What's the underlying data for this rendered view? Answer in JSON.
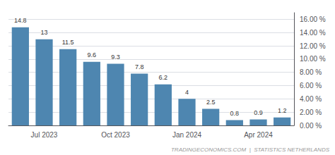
{
  "chart_data": {
    "type": "bar",
    "categories": [
      null,
      "Jul 2023",
      null,
      null,
      "Oct 2023",
      null,
      null,
      "Jan 2024",
      null,
      null,
      "Apr 2024",
      null
    ],
    "values": [
      14.8,
      13.0,
      11.5,
      9.6,
      9.3,
      7.8,
      6.2,
      4.0,
      2.5,
      0.8,
      0.9,
      1.2
    ],
    "color": "#4e86b0",
    "ylim": [
      0,
      17.0
    ],
    "yticks": [
      {
        "value": 0,
        "label": "0.00 %"
      },
      {
        "value": 2,
        "label": "2.00 %"
      },
      {
        "value": 4,
        "label": "4.00 %"
      },
      {
        "value": 6,
        "label": "6.00 %"
      },
      {
        "value": 8,
        "label": "8.00 %"
      },
      {
        "value": 10,
        "label": "10.00 %"
      },
      {
        "value": 12,
        "label": "12.00 %"
      },
      {
        "value": 14,
        "label": "14.00 %"
      },
      {
        "value": 16,
        "label": "16.00 %"
      }
    ],
    "grid": true,
    "data_labels": true,
    "annotation": "TRADINGECONOMICS.COM  |  STATISTICS NETHERLANDS"
  }
}
